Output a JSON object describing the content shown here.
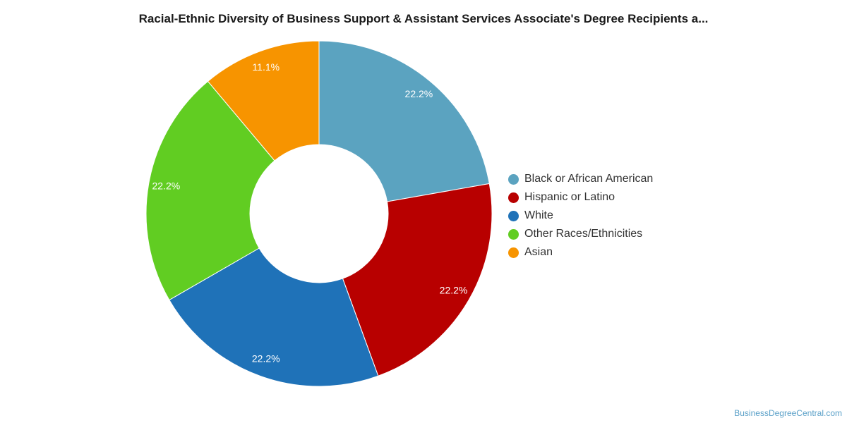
{
  "title": "Racial-Ethnic Diversity of Business Support & Assistant Services Associate's Degree Recipients a...",
  "watermark": "BusinessDegreeCentral.com",
  "chart_data": {
    "type": "pie",
    "donut": true,
    "title": "Racial-Ethnic Diversity of Business Support & Assistant Services Associate's Degree Recipients a...",
    "legend_position": "right",
    "slices": [
      {
        "name": "Black or African American",
        "value": 22.2,
        "label": "22.2%",
        "color": "#5ba3c0"
      },
      {
        "name": "Hispanic or Latino",
        "value": 22.2,
        "label": "22.2%",
        "color": "#b80000"
      },
      {
        "name": "White",
        "value": 22.2,
        "label": "22.2%",
        "color": "#1f72b8"
      },
      {
        "name": "Other Races/Ethnicities",
        "value": 22.2,
        "label": "22.2%",
        "color": "#61cd22"
      },
      {
        "name": "Asian",
        "value": 11.1,
        "label": "11.1%",
        "color": "#f79400"
      }
    ]
  }
}
